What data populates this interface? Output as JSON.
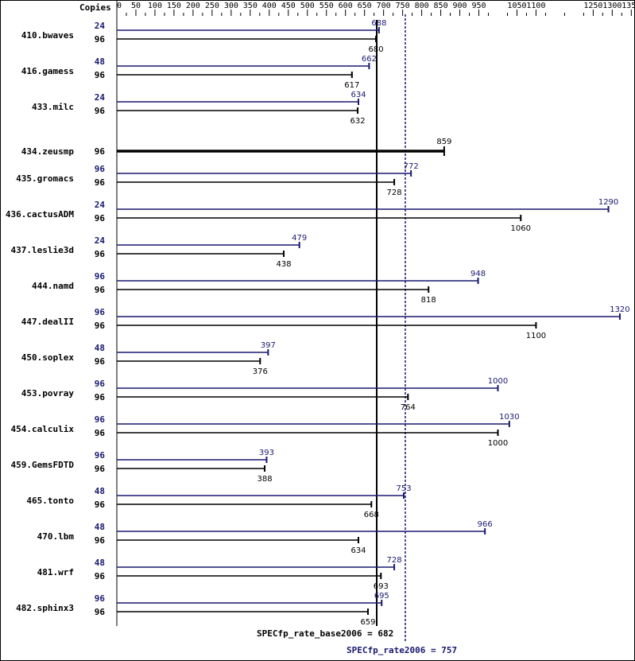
{
  "chart_data": {
    "type": "bar",
    "copies_label": "Copies",
    "x_ticks": [
      0,
      50,
      100,
      150,
      200,
      250,
      300,
      350,
      400,
      450,
      500,
      550,
      600,
      650,
      700,
      750,
      800,
      850,
      900,
      950,
      1050,
      1100,
      1250,
      1300,
      1350
    ],
    "xlim": [
      0,
      1350
    ],
    "colors": {
      "peak": "#191970",
      "base": "#000000",
      "axis": "#000000"
    },
    "categories": [
      "410.bwaves",
      "416.gamess",
      "433.milc",
      "434.zeusmp",
      "435.gromacs",
      "436.cactusADM",
      "437.leslie3d",
      "444.namd",
      "447.dealII",
      "450.soplex",
      "453.povray",
      "454.calculix",
      "459.GemsFDTD",
      "465.tonto",
      "470.lbm",
      "481.wrf",
      "482.sphinx3"
    ],
    "series": [
      {
        "name": "peak",
        "copies": [
          "24",
          "48",
          "24",
          null,
          "96",
          "24",
          "24",
          "96",
          "96",
          "48",
          "96",
          "96",
          "96",
          "48",
          "48",
          "48",
          "96"
        ],
        "values": [
          688,
          662,
          634,
          null,
          772,
          1290,
          479,
          948,
          1320,
          397,
          1000,
          1030,
          393,
          753,
          966,
          728,
          695
        ],
        "labels": [
          "688",
          "662",
          "634",
          null,
          "772",
          "1290",
          "479",
          "948",
          "1320",
          "397",
          "1000",
          "1030",
          "393",
          "753",
          "966",
          "728",
          "695"
        ]
      },
      {
        "name": "base",
        "copies": [
          "96",
          "96",
          "96",
          "96",
          "96",
          "96",
          "96",
          "96",
          "96",
          "96",
          "96",
          "96",
          "96",
          "96",
          "96",
          "96",
          "96"
        ],
        "values": [
          680,
          617,
          632,
          859,
          728,
          1060,
          438,
          818,
          1100,
          376,
          764,
          1000,
          388,
          668,
          634,
          693,
          659
        ],
        "labels": [
          "680",
          "617",
          "632",
          "859",
          "728",
          "1060",
          "438",
          "818",
          "1100",
          "376",
          "764",
          "1000",
          "388",
          "668",
          "634",
          "693",
          "659"
        ]
      }
    ],
    "reference_lines": {
      "base": {
        "label": "SPECfp_rate_base2006 = 682",
        "value": 682
      },
      "peak": {
        "label": "SPECfp_rate2006 = 757",
        "value": 757
      }
    }
  }
}
